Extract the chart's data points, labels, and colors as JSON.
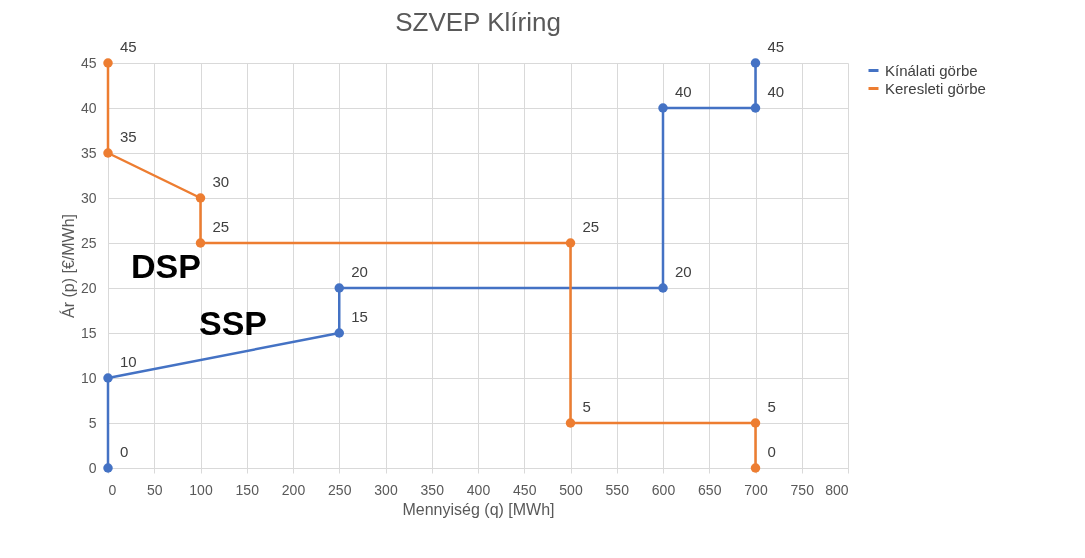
{
  "chart_data": {
    "type": "line",
    "title": "SZVEP Klíring",
    "xlabel": "Mennyiség (q) [MWh]",
    "ylabel": "Ár (p) [€/MWh]",
    "xlim": [
      0,
      800
    ],
    "xticks": [
      0,
      50,
      100,
      150,
      200,
      250,
      300,
      350,
      400,
      450,
      500,
      550,
      600,
      650,
      700,
      750,
      800
    ],
    "ylim": [
      0,
      45
    ],
    "yticks": [
      0,
      5,
      10,
      15,
      20,
      25,
      30,
      35,
      40,
      45
    ],
    "grid": true,
    "legend": "right",
    "marker": "circle",
    "data_labels": true,
    "series": [
      {
        "name": "Kínálati görbe",
        "color": "#4472c4",
        "x": [
          0,
          0,
          250,
          250,
          600,
          600,
          700,
          700
        ],
        "values": [
          0,
          10,
          15,
          20,
          20,
          40,
          40,
          45
        ]
      },
      {
        "name": "Keresleti görbe",
        "color": "#ed7d31",
        "x": [
          0,
          0,
          100,
          100,
          500,
          500,
          700,
          700
        ],
        "values": [
          45,
          35,
          30,
          25,
          25,
          5,
          5,
          0
        ]
      }
    ],
    "annotations": [
      "DSP",
      "SSP"
    ]
  }
}
